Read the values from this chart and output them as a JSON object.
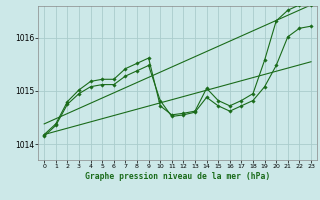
{
  "background_color": "#cce8e8",
  "plot_bg_color": "#cce8e8",
  "grid_color": "#aacccc",
  "line_color": "#1a6b1a",
  "xlim": [
    -0.5,
    23.5
  ],
  "ylim": [
    1013.7,
    1016.6
  ],
  "yticks": [
    1014,
    1015,
    1016
  ],
  "xticks": [
    0,
    1,
    2,
    3,
    4,
    5,
    6,
    7,
    8,
    9,
    10,
    11,
    12,
    13,
    14,
    15,
    16,
    17,
    18,
    19,
    20,
    21,
    22,
    23
  ],
  "xlabel": "Graphe pression niveau de la mer (hPa)",
  "line1_x": [
    0,
    1,
    2,
    3,
    4,
    5,
    6,
    7,
    8,
    9,
    10,
    11,
    12,
    13,
    14,
    15,
    16,
    17,
    18,
    19,
    20,
    21,
    22,
    23
  ],
  "line1_y": [
    1014.15,
    1014.35,
    1014.75,
    1014.95,
    1015.08,
    1015.12,
    1015.12,
    1015.28,
    1015.38,
    1015.48,
    1014.82,
    1014.52,
    1014.55,
    1014.6,
    1014.88,
    1014.72,
    1014.62,
    1014.72,
    1014.82,
    1015.08,
    1015.48,
    1016.02,
    1016.18,
    1016.22
  ],
  "line2_x": [
    0,
    1,
    2,
    3,
    4,
    5,
    6,
    7,
    8,
    9,
    10,
    11,
    12,
    13,
    14,
    15,
    16,
    17,
    18,
    19,
    20,
    21,
    22,
    23
  ],
  "line2_y": [
    1014.18,
    1014.38,
    1014.8,
    1015.02,
    1015.18,
    1015.22,
    1015.22,
    1015.42,
    1015.52,
    1015.62,
    1014.72,
    1014.55,
    1014.58,
    1014.62,
    1015.05,
    1014.82,
    1014.72,
    1014.82,
    1014.95,
    1015.58,
    1016.32,
    1016.52,
    1016.62,
    1016.62
  ],
  "line3_x": [
    0,
    23
  ],
  "line3_y": [
    1014.18,
    1015.55
  ],
  "line4_x": [
    0,
    23
  ],
  "line4_y": [
    1014.38,
    1016.62
  ]
}
